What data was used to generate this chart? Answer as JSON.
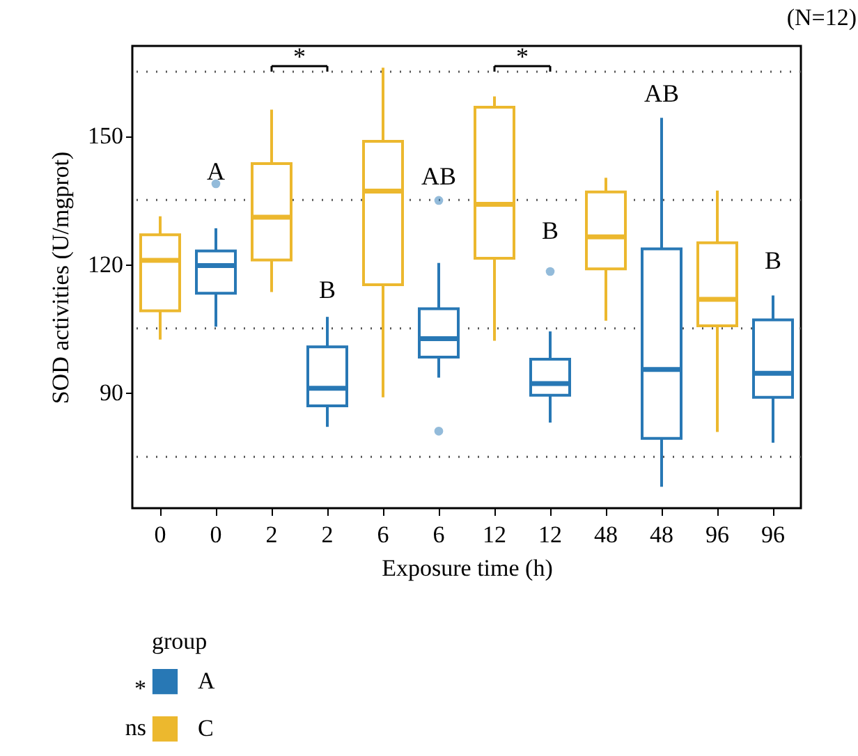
{
  "chart_data": {
    "type": "box",
    "xlabel": "Exposure time (h)",
    "ylabel": "SOD activities (U/mgprot)",
    "legend_title": "group",
    "legend": "bottom left",
    "categories": [
      "0",
      "0",
      "2",
      "2",
      "6",
      "6",
      "12",
      "12",
      "48",
      "48",
      "96",
      "96"
    ],
    "ylim": [
      63,
      171
    ],
    "yticks": [
      90,
      120,
      150
    ],
    "series": [
      {
        "name": "A",
        "color": "#2878b5",
        "boxes": [
          null,
          {
            "low": 105.4,
            "q1": 113.2,
            "median": 119.7,
            "q3": 123.1,
            "high": 128.4,
            "outliers": [
              138.8
            ]
          },
          null,
          {
            "low": 82,
            "q1": 86.9,
            "median": 91,
            "q3": 100.7,
            "high": 107.7
          },
          null,
          {
            "low": 93.5,
            "q1": 98.3,
            "median": 102.6,
            "q3": 109.6,
            "high": 120.3,
            "outliers": [
              134.9,
              81
            ]
          },
          null,
          {
            "low": 83,
            "q1": 89.4,
            "median": 92.1,
            "q3": 97.8,
            "high": 104.3,
            "outliers": [
              118.3
            ]
          },
          null,
          {
            "low": 68,
            "q1": 79.3,
            "median": 95.4,
            "q3": 123.6,
            "high": 154.2
          },
          null,
          {
            "low": 78.3,
            "q1": 88.9,
            "median": 94.5,
            "q3": 107,
            "high": 112.7
          }
        ]
      },
      {
        "name": "C",
        "color": "#ecb82e",
        "boxes": [
          {
            "low": 102.4,
            "q1": 109.1,
            "median": 120.9,
            "q3": 126.9,
            "high": 131.2
          },
          null,
          {
            "low": 113.5,
            "q1": 121,
            "median": 131,
            "q3": 143.5,
            "high": 156.1
          },
          null,
          {
            "low": 88.9,
            "q1": 115.2,
            "median": 137.1,
            "q3": 148.7,
            "high": 165.9
          },
          null,
          {
            "low": 102.1,
            "q1": 121.4,
            "median": 134,
            "q3": 156.7,
            "high": 159.2
          },
          null,
          {
            "low": 106.8,
            "q1": 118.9,
            "median": 126.4,
            "q3": 136.9,
            "high": 140.2
          },
          null,
          {
            "low": 80.8,
            "q1": 105.6,
            "median": 111.8,
            "q3": 125,
            "high": 137.2
          },
          null
        ]
      }
    ],
    "ref_lines": [
      {
        "axis": "y",
        "value": 75,
        "line_style": "dotted",
        "color": "#555555"
      },
      {
        "axis": "y",
        "value": 105,
        "line_style": "dotted",
        "color": "#555555"
      },
      {
        "axis": "y",
        "value": 135,
        "line_style": "dotted",
        "color": "#555555"
      },
      {
        "axis": "y",
        "value": 165,
        "line_style": "dotted",
        "color": "#555555"
      }
    ],
    "annotations": [
      "*",
      "*",
      "(N=12)",
      "*",
      "ns",
      "A",
      {
        "text": "B",
        "x": "2",
        "y": 113.7
      },
      {
        "text": "AB",
        "x": "6",
        "y": 140.3
      },
      {
        "text": "B",
        "x": "12",
        "y": 127.5
      },
      "AB",
      {
        "text": "B",
        "x": "96",
        "y": 120.5
      }
    ]
  }
}
